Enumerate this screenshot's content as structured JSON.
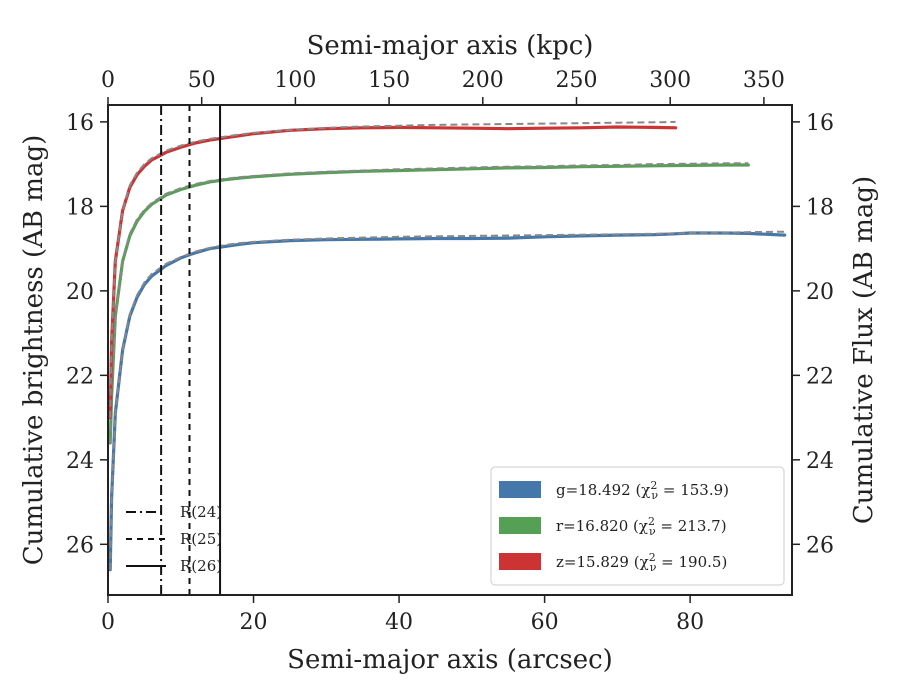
{
  "chart_data": {
    "type": "line",
    "xlabel": "Semi-major axis (arcsec)",
    "x2label": "Semi-major axis (kpc)",
    "ylabel": "Cumulative brightness (AB mag)",
    "y2label": "Cumulative Flux (AB mag)",
    "xlim": [
      0,
      94
    ],
    "x2lim": [
      0,
      365
    ],
    "ylim": [
      27.2,
      15.6
    ],
    "xticks": [
      0,
      20,
      40,
      60,
      80
    ],
    "x2ticks": [
      0,
      50,
      100,
      150,
      200,
      250,
      300,
      350
    ],
    "yticks": [
      16,
      18,
      20,
      22,
      24,
      26
    ],
    "series": [
      {
        "name": "g",
        "color": "#4477aa",
        "model_color": "#888888",
        "x": [
          0.3,
          0.5,
          1,
          2,
          3,
          4,
          5,
          6,
          8,
          10,
          12,
          14,
          16,
          18,
          20,
          25,
          30,
          35,
          40,
          45,
          50,
          55,
          60,
          65,
          70,
          75,
          78,
          80,
          85,
          88,
          93
        ],
        "values": [
          26.6,
          24.9,
          22.9,
          21.4,
          20.6,
          20.15,
          19.85,
          19.65,
          19.4,
          19.22,
          19.1,
          19.0,
          18.95,
          18.9,
          18.86,
          18.81,
          18.79,
          18.78,
          18.77,
          18.76,
          18.76,
          18.75,
          18.72,
          18.7,
          18.68,
          18.67,
          18.65,
          18.63,
          18.63,
          18.64,
          18.68
        ],
        "model": [
          26.6,
          24.9,
          22.9,
          21.4,
          20.55,
          20.1,
          19.8,
          19.6,
          19.36,
          19.2,
          19.07,
          18.98,
          18.92,
          18.87,
          18.84,
          18.79,
          18.76,
          18.74,
          18.72,
          18.71,
          18.7,
          18.69,
          18.68,
          18.67,
          18.66,
          18.65,
          18.64,
          18.63,
          18.62,
          18.61,
          18.6
        ]
      },
      {
        "name": "r",
        "color": "#55a055",
        "model_color": "#888888",
        "x": [
          0.3,
          0.5,
          1,
          2,
          3,
          4,
          5,
          6,
          8,
          10,
          12,
          14,
          16,
          18,
          20,
          25,
          30,
          35,
          40,
          45,
          50,
          55,
          60,
          65,
          70,
          75,
          80,
          85,
          88
        ],
        "values": [
          23.6,
          22.5,
          20.6,
          19.3,
          18.7,
          18.35,
          18.12,
          17.95,
          17.73,
          17.6,
          17.5,
          17.42,
          17.37,
          17.33,
          17.3,
          17.24,
          17.2,
          17.17,
          17.15,
          17.13,
          17.11,
          17.09,
          17.08,
          17.06,
          17.05,
          17.04,
          17.03,
          17.02,
          17.02
        ],
        "model": [
          23.6,
          22.5,
          20.6,
          19.3,
          18.65,
          18.3,
          18.08,
          17.92,
          17.7,
          17.57,
          17.47,
          17.4,
          17.35,
          17.31,
          17.28,
          17.22,
          17.18,
          17.15,
          17.12,
          17.1,
          17.08,
          17.06,
          17.05,
          17.03,
          17.02,
          17.0,
          16.99,
          16.98,
          16.98
        ]
      },
      {
        "name": "z",
        "color": "#cc3333",
        "model_color": "#888888",
        "x": [
          0.3,
          0.5,
          1,
          2,
          3,
          4,
          5,
          6,
          8,
          10,
          12,
          14,
          16,
          18,
          20,
          25,
          30,
          35,
          40,
          45,
          50,
          55,
          60,
          65,
          70,
          75,
          78
        ],
        "values": [
          23.0,
          21.2,
          19.3,
          18.1,
          17.55,
          17.25,
          17.05,
          16.9,
          16.72,
          16.6,
          16.5,
          16.43,
          16.38,
          16.33,
          16.28,
          16.2,
          16.16,
          16.14,
          16.13,
          16.14,
          16.15,
          16.16,
          16.15,
          16.14,
          16.12,
          16.13,
          16.14
        ],
        "model": [
          23.0,
          21.2,
          19.3,
          18.1,
          17.5,
          17.2,
          17.0,
          16.86,
          16.68,
          16.56,
          16.47,
          16.4,
          16.35,
          16.3,
          16.26,
          16.19,
          16.14,
          16.11,
          16.09,
          16.07,
          16.06,
          16.05,
          16.04,
          16.03,
          16.02,
          16.01,
          16.0
        ]
      }
    ],
    "vlines": [
      {
        "label": "R(24)",
        "x": 7.3,
        "style": "dashdot"
      },
      {
        "label": "R(25)",
        "x": 11.2,
        "style": "dashed"
      },
      {
        "label": "R(26)",
        "x": 15.4,
        "style": "solid"
      }
    ],
    "legend_bands": [
      {
        "label": "g=18.492 (χ²ν = 153.9)",
        "color": "#4477aa",
        "mag": "18.492",
        "chi": "153.9",
        "band": "g"
      },
      {
        "label": "r=16.820 (χ²ν = 213.7)",
        "color": "#55a055",
        "mag": "16.820",
        "chi": "213.7",
        "band": "r"
      },
      {
        "label": "z=15.829 (χ²ν = 190.5)",
        "color": "#cc3333",
        "mag": "15.829",
        "chi": "190.5",
        "band": "z"
      }
    ],
    "legend_lines_position": "bottom-left",
    "legend_bands_position": "bottom-right"
  }
}
